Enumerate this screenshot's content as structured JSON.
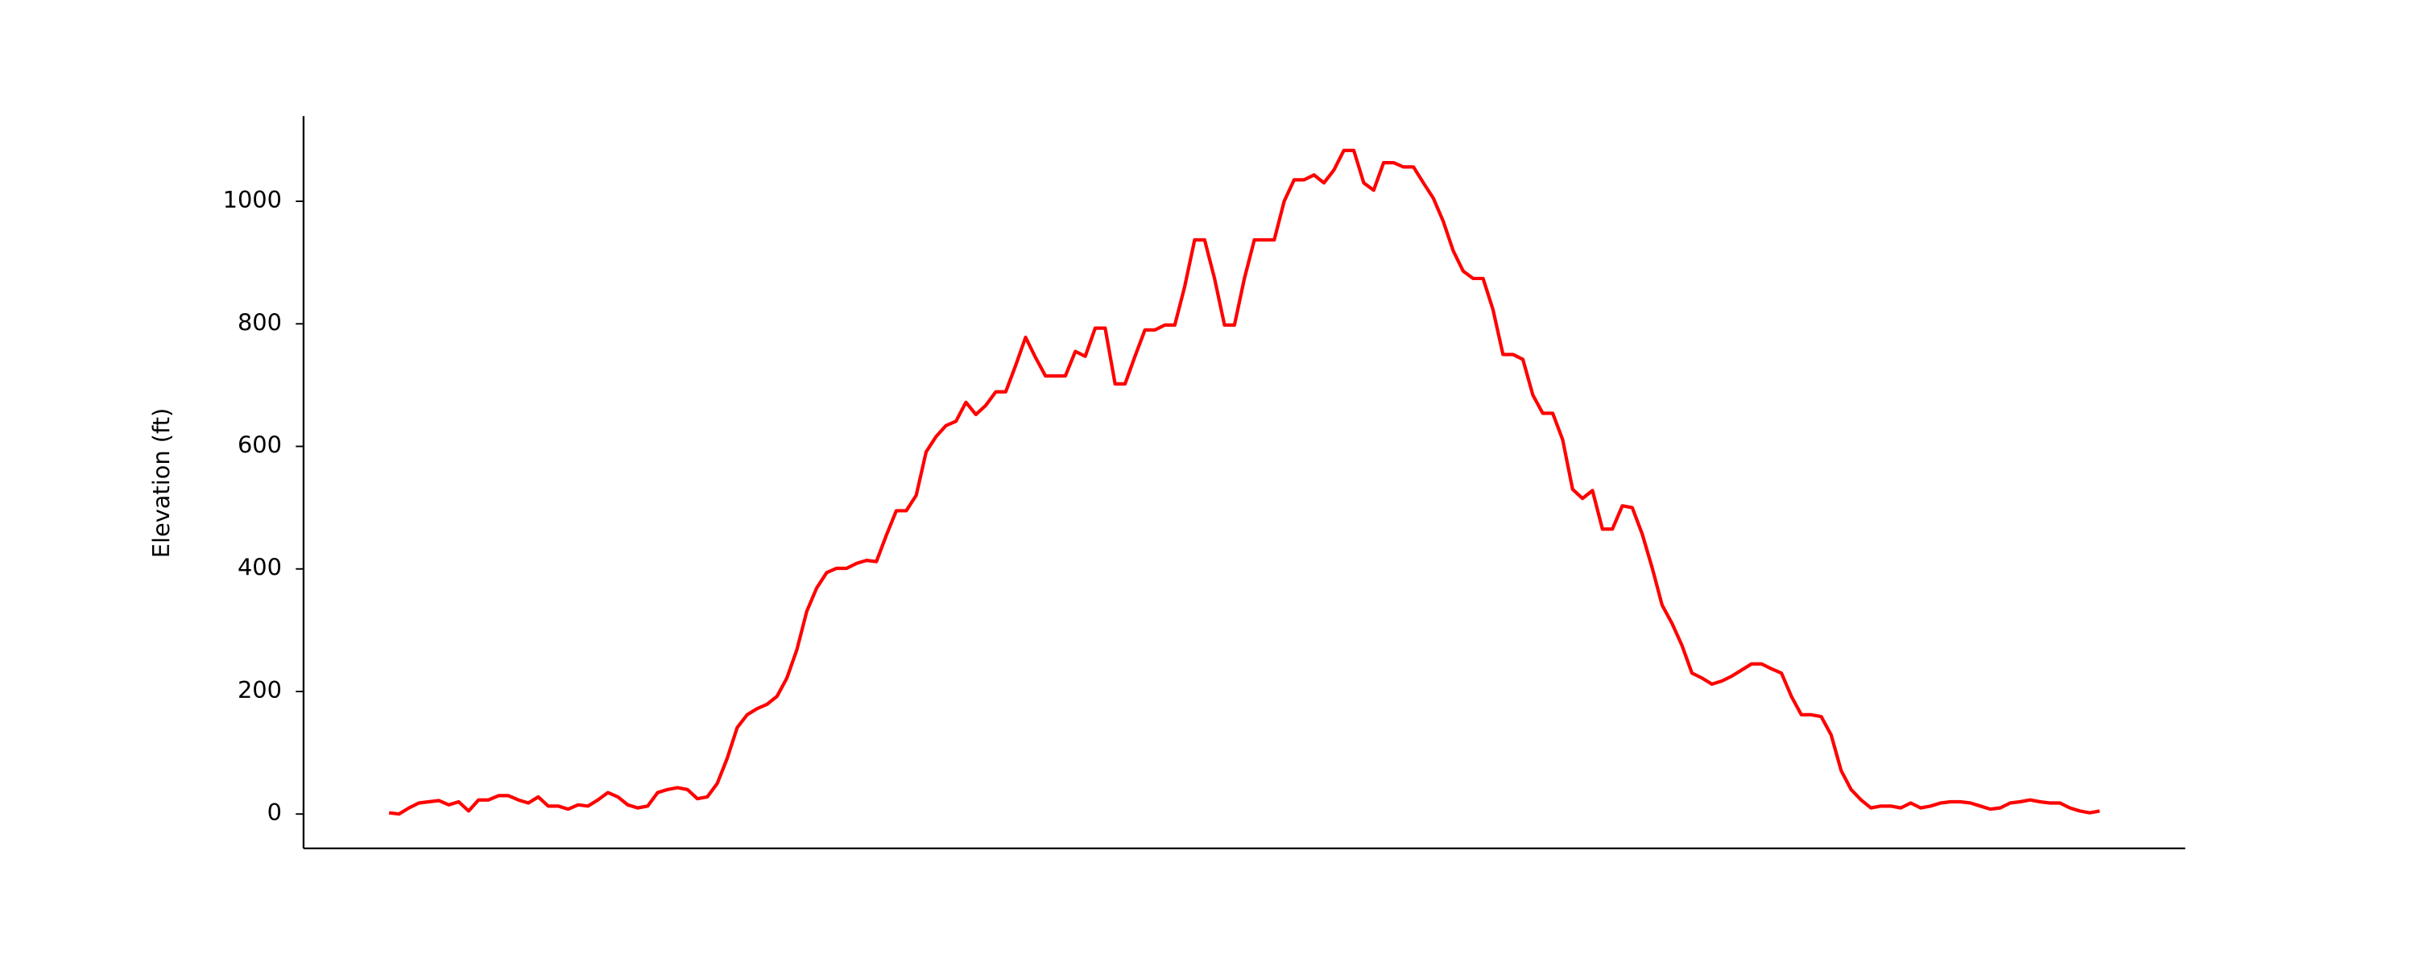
{
  "chart_data": {
    "type": "line",
    "y_label": "Elevation (ft)",
    "ylim": [
      -56,
      1139
    ],
    "yticks": [
      0,
      200,
      400,
      600,
      800,
      1000
    ],
    "series": [
      {
        "color": "#ff0000",
        "values": [
          2,
          0,
          10,
          18,
          20,
          22,
          15,
          20,
          5,
          23,
          23,
          30,
          30,
          23,
          18,
          28,
          13,
          13,
          8,
          15,
          13,
          23,
          35,
          28,
          15,
          10,
          13,
          35,
          40,
          43,
          40,
          25,
          28,
          50,
          91,
          141,
          162,
          172,
          179,
          192,
          222,
          268,
          331,
          369,
          394,
          401,
          401,
          409,
          414,
          412,
          455,
          495,
          495,
          520,
          591,
          616,
          634,
          641,
          672,
          652,
          667,
          689,
          689,
          732,
          778,
          745,
          715,
          715,
          715,
          755,
          747,
          793,
          793,
          702,
          702,
          747,
          790,
          790,
          798,
          798,
          861,
          937,
          937,
          874,
          798,
          798,
          874,
          937,
          937,
          937,
          1000,
          1035,
          1035,
          1043,
          1030,
          1051,
          1083,
          1083,
          1030,
          1018,
          1063,
          1063,
          1056,
          1056,
          1030,
          1005,
          967,
          919,
          886,
          874,
          874,
          823,
          750,
          750,
          742,
          684,
          654,
          654,
          611,
          530,
          515,
          528,
          465,
          465,
          503,
          500,
          457,
          402,
          341,
          311,
          275,
          230,
          222,
          212,
          217,
          225,
          235,
          245,
          245,
          237,
          230,
          192,
          162,
          162,
          159,
          129,
          71,
          40,
          23,
          10,
          13,
          13,
          10,
          18,
          10,
          13,
          18,
          20,
          20,
          18,
          13,
          8,
          10,
          18,
          20,
          23,
          20,
          18,
          18,
          10,
          5,
          2,
          5
        ]
      }
    ]
  }
}
